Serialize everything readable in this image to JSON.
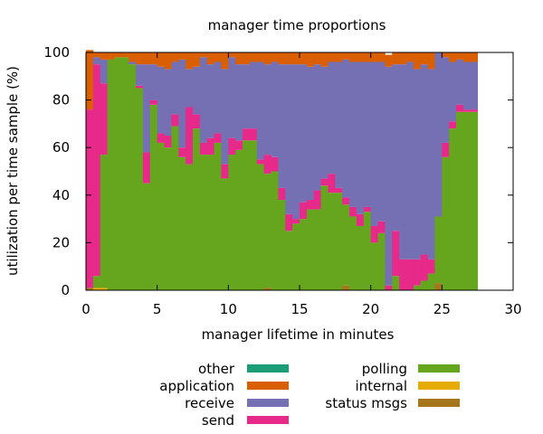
{
  "chart_data": {
    "type": "area",
    "title": "manager time proportions",
    "xlabel": "manager lifetime in minutes",
    "ylabel": "utilization per time sample (%)",
    "xlim": [
      0,
      30
    ],
    "ylim": [
      0,
      100
    ],
    "xticks": [
      0,
      5,
      10,
      15,
      20,
      25,
      30
    ],
    "yticks": [
      0,
      20,
      40,
      60,
      80,
      100
    ],
    "grid": false,
    "legend": "bottom",
    "stacking": "stacked-steps",
    "x": [
      0.25,
      0.75,
      1.25,
      1.75,
      2.25,
      2.75,
      3.25,
      3.75,
      4.25,
      4.75,
      5.25,
      5.75,
      6.25,
      6.75,
      7.25,
      7.75,
      8.25,
      8.75,
      9.25,
      9.75,
      10.25,
      10.75,
      11.25,
      11.75,
      12.25,
      12.75,
      13.25,
      13.75,
      14.25,
      14.75,
      15.25,
      15.75,
      16.25,
      16.75,
      17.25,
      17.75,
      18.25,
      18.75,
      19.25,
      19.75,
      20.25,
      20.75,
      21.25,
      21.75,
      22.25,
      22.75,
      23.25,
      23.75,
      24.25,
      24.75,
      25.25,
      25.75,
      26.25,
      26.75,
      27.25
    ],
    "series": [
      {
        "name": "status msgs",
        "color": "#a6761d",
        "values": [
          1,
          0,
          0,
          0,
          0,
          0,
          0,
          0,
          0,
          0,
          0,
          0,
          0,
          0,
          0,
          0,
          0,
          0,
          0,
          0,
          0,
          0,
          0,
          0,
          0,
          1,
          0,
          0,
          0,
          0,
          0,
          0,
          0,
          0,
          0,
          0,
          2,
          0,
          0,
          0,
          0,
          0,
          0,
          0,
          0,
          0,
          0,
          0,
          0,
          3,
          0,
          0,
          0,
          0,
          0
        ]
      },
      {
        "name": "internal",
        "color": "#e6ab02",
        "values": [
          0,
          1,
          1,
          0,
          0,
          0,
          0,
          0,
          0,
          0,
          0,
          0,
          0,
          0,
          0,
          0,
          0,
          0,
          0,
          0,
          0,
          0,
          0,
          0,
          0,
          0,
          0,
          0,
          0,
          0,
          0,
          0,
          0,
          0,
          0,
          0,
          0,
          0,
          0,
          0,
          0,
          0,
          0,
          0,
          0,
          0,
          0,
          0,
          0,
          0,
          0,
          0,
          0,
          0,
          0
        ]
      },
      {
        "name": "polling",
        "color": "#66a61e",
        "values": [
          0,
          5,
          56,
          97,
          98,
          98,
          95,
          85,
          45,
          78,
          62,
          60,
          69,
          56,
          53,
          68,
          57,
          57,
          62,
          47,
          57,
          59,
          63,
          63,
          53,
          48,
          50,
          38,
          25,
          28,
          30,
          34,
          34,
          44,
          41,
          41,
          34,
          31,
          27,
          33,
          20,
          24,
          0,
          6,
          0,
          0,
          2,
          4,
          7,
          28,
          56,
          68,
          75,
          75,
          75
        ]
      },
      {
        "name": "send",
        "color": "#e7298a",
        "values": [
          75,
          89,
          30,
          0,
          0,
          0,
          0,
          1,
          13,
          2,
          4,
          5,
          5,
          4,
          24,
          6,
          5,
          7,
          4,
          6,
          7,
          4,
          5,
          5,
          2,
          8,
          6,
          5,
          7,
          2,
          7,
          4,
          8,
          3,
          8,
          2,
          3,
          4,
          5,
          2,
          7,
          5,
          2,
          19,
          13,
          13,
          11,
          11,
          6,
          0,
          6,
          3,
          3,
          1,
          1
        ]
      },
      {
        "name": "receive",
        "color": "#7570b3",
        "values": [
          0,
          3,
          10,
          0,
          0,
          0,
          1,
          9,
          37,
          15,
          28,
          28,
          22,
          37,
          16,
          20,
          36,
          31,
          30,
          40,
          34,
          32,
          27,
          28,
          41,
          38,
          40,
          52,
          63,
          65,
          58,
          56,
          53,
          47,
          47,
          53,
          58,
          61,
          64,
          61,
          69,
          67,
          92,
          70,
          82,
          83,
          80,
          80,
          80,
          69,
          36,
          25,
          19,
          20,
          20
        ]
      },
      {
        "name": "application",
        "color": "#d95f02",
        "values": [
          25,
          2,
          3,
          3,
          2,
          2,
          4,
          5,
          5,
          5,
          6,
          7,
          4,
          3,
          7,
          6,
          2,
          5,
          4,
          7,
          2,
          5,
          5,
          4,
          4,
          5,
          4,
          5,
          5,
          5,
          5,
          6,
          5,
          6,
          4,
          4,
          3,
          4,
          4,
          4,
          4,
          4,
          5,
          5,
          5,
          4,
          7,
          5,
          7,
          0,
          2,
          4,
          3,
          4,
          4
        ]
      },
      {
        "name": "other",
        "color": "#1b9e77",
        "values": [
          0,
          0,
          0,
          0,
          0,
          0,
          0,
          0,
          0,
          0,
          0,
          0,
          0,
          0,
          0,
          0,
          0,
          0,
          0,
          0,
          0,
          0,
          0,
          0,
          0,
          0,
          0,
          0,
          0,
          0,
          0,
          0,
          0,
          0,
          0,
          0,
          0,
          0,
          0,
          0,
          0,
          0,
          0,
          0,
          0,
          0,
          0,
          0,
          0,
          0,
          0,
          0,
          0,
          0,
          0
        ]
      }
    ],
    "legend_order": [
      "other",
      "application",
      "receive",
      "send",
      "polling",
      "internal",
      "status msgs"
    ]
  }
}
